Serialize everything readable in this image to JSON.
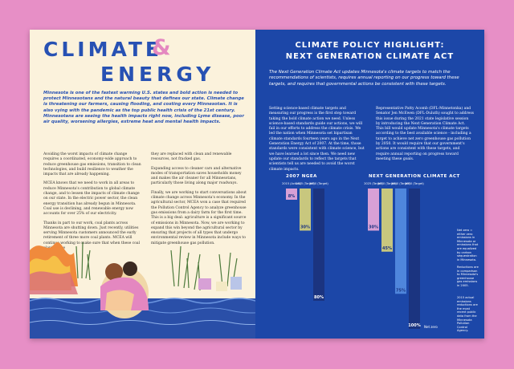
{
  "left_page": {
    "title_word1": "CLIMATE",
    "title_amp": "&",
    "title_word2": "ENERGY",
    "intro": "Minnesota is one of the fastest warming U.S. states and bold action is needed to protect Minnesotans and the natural beauty that defines our state. Climate change is threatening our farmers, causing flooding, and costing every Minnesotan. It is also vying with the pandemic as the top public health crisis of the 21st century. Minnesotans are seeing the health impacts right now, including Lyme disease, poor air quality, worsening allergies, extreme heat and mental health impacts.",
    "col1": [
      "Avoiding the worst impacts of climate change requires a coordinated, economy-wide approach to reduce greenhouse gas emissions, transition to clean technologies, and build resilience to weather the impacts that are already happening.",
      "MCEA knows that we need to work in all areas to reduce Minnesota's contribution to global climate change, and to lessen the impacts of climate change on our state. In the electric power sector, the clean energy transition has already begun in Minnesota. Coal use is declining, and renewable energy now accounts for over 25% of our electricity.",
      "Thanks in part to our work, coal plants across Minnesota are shutting down. Just recently, utilities serving Minnesota customers announced the early retirement of three more coal plants. MCEA will continue working to make sure that when these coal plants close"
    ],
    "col2": [
      "they are replaced with clean and renewable resources, not fracked gas.",
      "Expanding access to cleaner cars and alternative modes of transportation saves households money and makes the air cleaner for all Minnesotans, particularly those living along major roadways.",
      "Finally, we are working to start conversations about climate change across Minnesota's economy. In the agricultural sector, MCEA won a case that required the Pollution Control Agency to analyze greenhouse gas emissions from a dairy farm for the first time. This is a big deal: agriculture is a significant source of emissions in Minnesota. Now, we are working to expand this win beyond the agricultural sector by ensuring that projects of all types that undergo environmental review in Minnesota include ways to mitigate greenhouse gas pollution."
    ]
  },
  "right_page": {
    "title_line1": "CLIMATE POLICY HIGHLIGHT:",
    "title_line2": "NEXT GENERATION CLIMATE ACT",
    "intro": "The Next Generation Climate Act updates Minnesota's climate targets to match the recommendations of scientists, requires annual reporting on our progress toward these targets, and requires that governmental actions be consistent with these targets.",
    "col1": "Setting science-based climate targets and measuring our progress is the first step toward taking the bold climate action we need. Unless science-based standards guide our actions, we will fail in our efforts to address the climate crisis. We led the nation when Minnesota set bipartisan climate standards fourteen years ago in the Next Generation Energy Act of 2007. At the time, those standards were consistent with climate science, but we have learned a lot since then. We need new update our standards to reflect the targets that scientists tell us are needed to avoid the worst climate impacts.",
    "col2": "Representative Patty Acomb (DFL-Minnetonka) and Senator Jen McEwen (DFL-Duluth) sought to address this issue during the 2021 state legislative session by introducing the Next Generation Climate Act. This bill would update Minnesota's climate targets according to the best available science - including a target to achieve net zero greenhouse gas pollution by 2050. It would require that our government's actions are consistent with these targets, and require annual reporting on progress toward meeting these goals."
  },
  "chart_data": {
    "type": "bar",
    "groups": [
      {
        "title": "2007 NGEA",
        "categories": [
          "2015 (Actual)",
          "2025 (Target)",
          "2050 (Target)"
        ],
        "values": [
          8,
          30,
          80
        ],
        "colors": [
          "#d7a0d6",
          "#c8c77e",
          "#1b3480"
        ]
      },
      {
        "title": "NEXT GENERATION CLIMATE ACT",
        "categories": [
          "2025 (Target)",
          "2030 (Target)",
          "2040 (Target)",
          "2050 (Target)"
        ],
        "values": [
          30,
          45,
          75,
          100
        ],
        "colors": [
          "#d7a0d6",
          "#c8c77e",
          "#4f86dc",
          "#1b3480"
        ]
      }
    ],
    "value_labels": [
      "8%",
      "30%",
      "80%",
      "30%",
      "45%",
      "75%",
      "100%"
    ],
    "net_zero_label": "Net zero",
    "notes": [
      "Net zero = either zero emissions in Minnesota or emissions that are equalized by carbon sequestration in Minnesota.",
      "Reductions are in comparison to Minnesota's greenhouse gas emissions in 2005.",
      "2015 actual emissions reductions are the most recent public data from the Minnesota Pollution Control Agency."
    ]
  },
  "colors": {
    "blue": "#2751b3",
    "pink": "#e487c0",
    "background": "#e78fc6",
    "cream": "#fbf2dc",
    "right_bg": "#1c47a8"
  }
}
